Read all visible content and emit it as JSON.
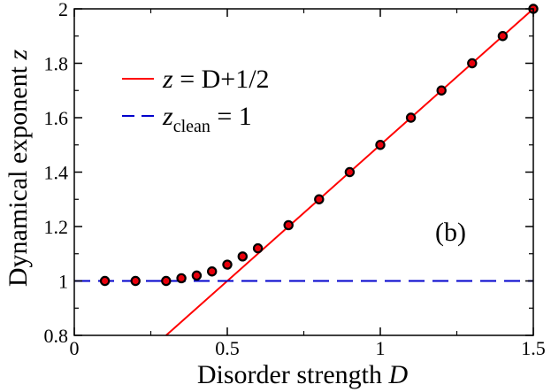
{
  "chart_data": {
    "type": "scatter",
    "panel_label": "(b)",
    "xlabel": "Disorder strength",
    "xlabel_var": "D",
    "ylabel": "Dynamical exponent",
    "ylabel_var": "z",
    "xlim": [
      0,
      1.5
    ],
    "ylim": [
      0.8,
      2.0
    ],
    "xticks": [
      0,
      0.5,
      1,
      1.5
    ],
    "xtick_labels": [
      "0",
      "0.5",
      "1",
      "1.5"
    ],
    "yticks": [
      0.8,
      1.0,
      1.2,
      1.4,
      1.6,
      1.8,
      2.0
    ],
    "ytick_labels": [
      "0.8",
      "1",
      "1.2",
      "1.4",
      "1.6",
      "1.8",
      "2"
    ],
    "points": {
      "name": "data",
      "marker": "circle",
      "fill": "#e8000b",
      "edge": "#000000",
      "x": [
        0.1,
        0.2,
        0.3,
        0.35,
        0.4,
        0.45,
        0.5,
        0.55,
        0.6,
        0.7,
        0.8,
        0.9,
        1.0,
        1.1,
        1.2,
        1.3,
        1.4,
        1.5
      ],
      "y": [
        1.0,
        1.0,
        1.0,
        1.01,
        1.02,
        1.035,
        1.06,
        1.09,
        1.12,
        1.205,
        1.3,
        1.4,
        1.5,
        1.6,
        1.7,
        1.8,
        1.9,
        2.0
      ]
    },
    "lines": [
      {
        "name": "z = D+1/2",
        "legend_lhs": "z",
        "legend_rhs": " = D+1/2",
        "color": "#ff0000",
        "style": "solid",
        "x": [
          0.3,
          1.5
        ],
        "y": [
          0.8,
          2.0
        ]
      },
      {
        "name": "z_clean = 1",
        "legend_lhs": "z",
        "legend_sub": "clean",
        "legend_rhs": " = 1",
        "color": "#0000cc",
        "style": "dashed",
        "x": [
          0.0,
          1.5
        ],
        "y": [
          1.0,
          1.0
        ]
      }
    ],
    "legend_position": "top-left"
  }
}
